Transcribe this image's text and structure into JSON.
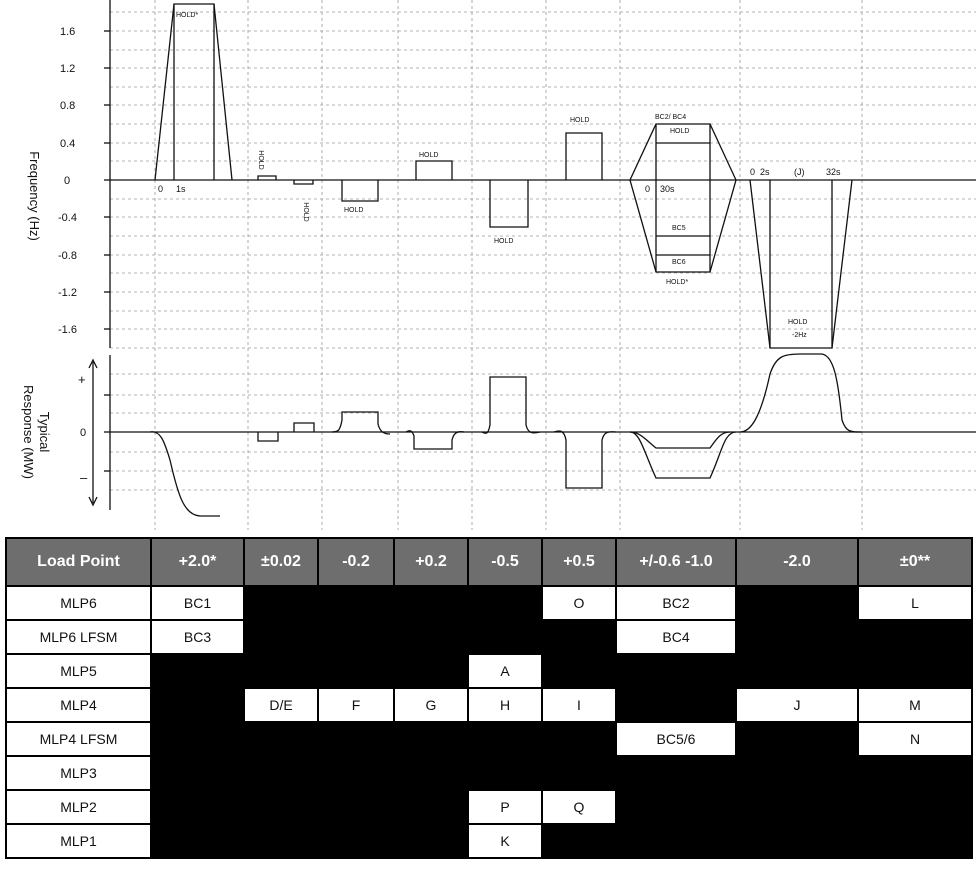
{
  "top_chart": {
    "ylabel": "Frequency (Hz)",
    "yticks": [
      "1.6",
      "1.2",
      "0.8",
      "0.4",
      "0",
      "-0.4",
      "-0.8",
      "-1.2",
      "-1.6"
    ],
    "annotations": {
      "hold_1": "HOLD*",
      "zero_1": "0",
      "time_1": "1s",
      "hold_2": "HOLD",
      "hold_3": "HOLD",
      "hold_4": "HOLD",
      "hold_5": "HOLD",
      "hold_6": "HOLD",
      "hold_7": "HOLD",
      "bc24": "BC2/ BC4",
      "hold_8": "HOLD",
      "zero_2": "0",
      "time_2": "30s",
      "bc5": "BC5",
      "bc6": "BC6",
      "hold_9": "HOLD*",
      "zero_3": "0",
      "time_3": "2s",
      "j": "(J)",
      "time_4": "32s",
      "hold_10": "HOLD",
      "minus2hz": "-2Hz"
    }
  },
  "bottom_chart": {
    "ylabel_line1": "Typical",
    "ylabel_line2": "Response (MW)",
    "yticks": [
      "+",
      "0",
      "–"
    ]
  },
  "table": {
    "header": [
      "Load Point",
      "+2.0*",
      "±0.02",
      "-0.2",
      "+0.2",
      "-0.5",
      "+0.5",
      "+/-0.6 -1.0",
      "-2.0",
      "±0**"
    ],
    "rows": [
      {
        "label": "MLP6",
        "cells": [
          "BC1",
          "",
          "",
          "",
          "",
          "O",
          "BC2",
          "",
          "L"
        ]
      },
      {
        "label": "MLP6 LFSM",
        "cells": [
          "BC3",
          "",
          "",
          "",
          "",
          "",
          "BC4",
          "",
          ""
        ]
      },
      {
        "label": "MLP5",
        "cells": [
          "",
          "",
          "",
          "",
          "A",
          "",
          "",
          "",
          ""
        ]
      },
      {
        "label": "MLP4",
        "cells": [
          "",
          "D/E",
          "F",
          "G",
          "H",
          "I",
          "",
          "J",
          "M"
        ]
      },
      {
        "label": "MLP4 LFSM",
        "cells": [
          "",
          "",
          "",
          "",
          "",
          "",
          "BC5/6",
          "",
          "N"
        ]
      },
      {
        "label": "MLP3",
        "cells": [
          "",
          "",
          "",
          "",
          "",
          "",
          "",
          "",
          ""
        ]
      },
      {
        "label": "MLP2",
        "cells": [
          "",
          "",
          "",
          "",
          "P",
          "Q",
          "",
          "",
          ""
        ]
      },
      {
        "label": "MLP1",
        "cells": [
          "",
          "",
          "",
          "",
          "K",
          "",
          "",
          "",
          ""
        ]
      }
    ]
  }
}
